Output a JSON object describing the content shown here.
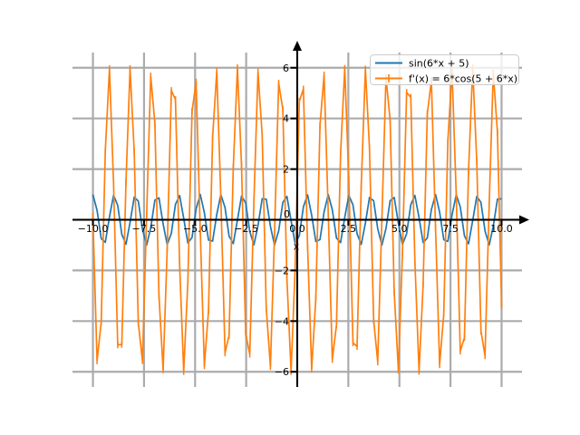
{
  "chart_data": {
    "type": "line",
    "title": "",
    "xlabel": "x",
    "ylabel": "",
    "xlim": [
      -11,
      11
    ],
    "ylim": [
      -6.6,
      6.6
    ],
    "grid": true,
    "axis_style": "centered-spines-with-arrows",
    "x_ticks": {
      "values": [
        -10.0,
        -7.5,
        -5.0,
        -2.5,
        0.0,
        2.5,
        5.0,
        7.5,
        10.0
      ],
      "labels": [
        "−10.0",
        "−7.5",
        "−5.0",
        "−2.5",
        "0.0",
        "2.5",
        "5.0",
        "7.5",
        "10.0"
      ]
    },
    "y_ticks": {
      "values": [
        6,
        4,
        2,
        0,
        -2,
        -4,
        -6
      ],
      "labels": [
        "6",
        "4",
        "2",
        "0",
        "−2",
        "−4",
        "−6"
      ]
    },
    "origin_label": "0",
    "sampling": {
      "x_start": -10,
      "x_end": 10,
      "num_points": 100
    },
    "series": [
      {
        "name": "sin(6*x + 5)",
        "fn": "sin",
        "amplitude": 1,
        "angular_frequency": 6,
        "phase": 5,
        "color": "#1f77b4",
        "marker": "none"
      },
      {
        "name": "f'(x) = 6*cos(5 + 6*x)",
        "fn": "cos",
        "amplitude": 6,
        "angular_frequency": 6,
        "phase": 5,
        "color": "#ff7f0e",
        "marker": "|"
      }
    ],
    "legend": {
      "position": "upper right",
      "entries": [
        "sin(6*x + 5)",
        "f'(x) = 6*cos(5 + 6*x)"
      ]
    }
  },
  "style": {
    "background": "#ffffff",
    "grid_color": "#ababab",
    "axis_color": "#000000",
    "tick_label_color": "#000000",
    "legend_border_color": "#cccccc",
    "legend_background": "rgba(255,255,255,0.8)"
  }
}
